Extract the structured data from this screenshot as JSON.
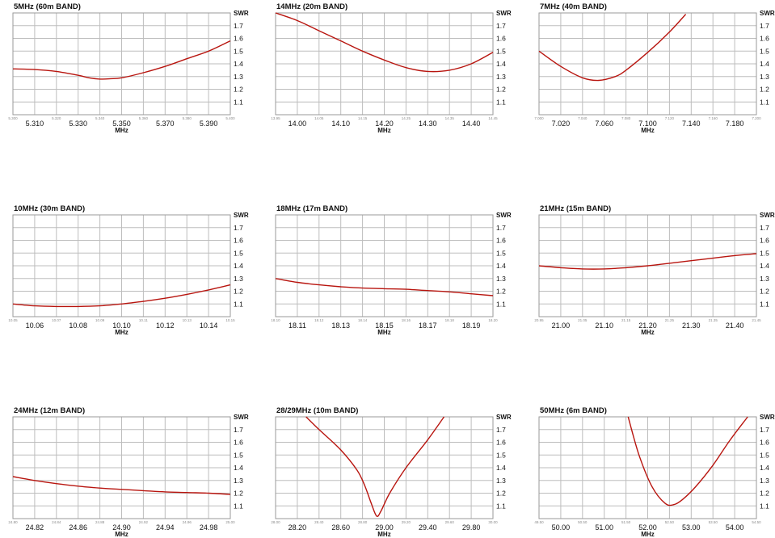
{
  "colors": {
    "curve": "#b8150f",
    "grid": "#bdbdbd"
  },
  "chart_data": [
    {
      "type": "line",
      "title": "5MHz (60m BAND)",
      "xlabel": "MHz",
      "ylabel": "SWR",
      "xlim": [
        5.3,
        5.4
      ],
      "ylim": [
        1.0,
        1.8
      ],
      "xticks_major": [
        "5.310",
        "5.330",
        "5.350",
        "5.370",
        "5.390"
      ],
      "xticks_minor": [
        "5.300",
        "5.320",
        "5.340",
        "5.360",
        "5.380",
        "5.400"
      ],
      "yticks": [
        "1.1",
        "1.2",
        "1.3",
        "1.4",
        "1.5",
        "1.6",
        "1.7"
      ],
      "grid": true,
      "series": [
        {
          "x": [
            5.3,
            5.31,
            5.32,
            5.33,
            5.335,
            5.34,
            5.345,
            5.35,
            5.36,
            5.37,
            5.38,
            5.39,
            5.4
          ],
          "y": [
            1.36,
            1.355,
            1.34,
            1.31,
            1.29,
            1.28,
            1.283,
            1.29,
            1.33,
            1.38,
            1.44,
            1.5,
            1.58
          ]
        }
      ]
    },
    {
      "type": "line",
      "title": "14MHz (20m BAND)",
      "xlabel": "MHz",
      "ylabel": "SWR",
      "xlim": [
        13.95,
        14.45
      ],
      "ylim": [
        1.0,
        1.8
      ],
      "xticks_major": [
        "14.00",
        "14.10",
        "14.20",
        "14.30",
        "14.40"
      ],
      "xticks_minor": [
        "13.95",
        "14.05",
        "14.15",
        "14.25",
        "14.35",
        "14.45"
      ],
      "yticks": [
        "1.1",
        "1.2",
        "1.3",
        "1.4",
        "1.5",
        "1.6",
        "1.7"
      ],
      "grid": true,
      "series": [
        {
          "x": [
            13.95,
            14.0,
            14.05,
            14.1,
            14.15,
            14.2,
            14.25,
            14.3,
            14.35,
            14.4,
            14.45
          ],
          "y": [
            1.8,
            1.74,
            1.66,
            1.58,
            1.5,
            1.43,
            1.37,
            1.34,
            1.35,
            1.4,
            1.49
          ]
        }
      ]
    },
    {
      "type": "line",
      "title": "7MHz (40m BAND)",
      "xlabel": "MHz",
      "ylabel": "SWR",
      "xlim": [
        7.0,
        7.2
      ],
      "ylim": [
        1.0,
        1.8
      ],
      "xticks_major": [
        "7.020",
        "7.060",
        "7.100",
        "7.140",
        "7.180"
      ],
      "xticks_minor": [
        "7.000",
        "7.040",
        "7.080",
        "7.120",
        "7.160",
        "7.200"
      ],
      "yticks": [
        "1.1",
        "1.2",
        "1.3",
        "1.4",
        "1.5",
        "1.6",
        "1.7"
      ],
      "grid": true,
      "series": [
        {
          "x": [
            7.0,
            7.02,
            7.04,
            7.055,
            7.07,
            7.08,
            7.1,
            7.12,
            7.135
          ],
          "y": [
            1.5,
            1.38,
            1.29,
            1.27,
            1.3,
            1.35,
            1.49,
            1.65,
            1.79
          ]
        }
      ]
    },
    {
      "type": "line",
      "title": "10MHz (30m BAND)",
      "xlabel": "MHz",
      "ylabel": "SWR",
      "xlim": [
        10.05,
        10.15
      ],
      "ylim": [
        1.0,
        1.8
      ],
      "xticks_major": [
        "10.06",
        "10.08",
        "10.10",
        "10.12",
        "10.14"
      ],
      "xticks_minor": [
        "10.05",
        "10.07",
        "10.09",
        "10.11",
        "10.13",
        "10.15"
      ],
      "yticks": [
        "1.1",
        "1.2",
        "1.3",
        "1.4",
        "1.5",
        "1.6",
        "1.7"
      ],
      "grid": true,
      "series": [
        {
          "x": [
            10.05,
            10.06,
            10.07,
            10.08,
            10.09,
            10.1,
            10.11,
            10.12,
            10.13,
            10.14,
            10.15
          ],
          "y": [
            1.1,
            1.085,
            1.08,
            1.08,
            1.085,
            1.1,
            1.12,
            1.145,
            1.175,
            1.21,
            1.25
          ]
        }
      ]
    },
    {
      "type": "line",
      "title": "18MHz (17m BAND)",
      "xlabel": "MHz",
      "ylabel": "SWR",
      "xlim": [
        18.1,
        18.2
      ],
      "ylim": [
        1.0,
        1.8
      ],
      "xticks_major": [
        "18.11",
        "18.13",
        "18.15",
        "18.17",
        "18.19"
      ],
      "xticks_minor": [
        "18.10",
        "18.12",
        "18.14",
        "18.16",
        "18.18",
        "18.20"
      ],
      "yticks": [
        "1.1",
        "1.2",
        "1.3",
        "1.4",
        "1.5",
        "1.6",
        "1.7"
      ],
      "grid": true,
      "series": [
        {
          "x": [
            18.1,
            18.11,
            18.12,
            18.13,
            18.14,
            18.15,
            18.16,
            18.17,
            18.18,
            18.19,
            18.2
          ],
          "y": [
            1.3,
            1.27,
            1.25,
            1.235,
            1.225,
            1.22,
            1.215,
            1.205,
            1.195,
            1.18,
            1.165
          ]
        }
      ]
    },
    {
      "type": "line",
      "title": "21MHz (15m BAND)",
      "xlabel": "MHz",
      "ylabel": "SWR",
      "xlim": [
        20.95,
        21.45
      ],
      "ylim": [
        1.0,
        1.8
      ],
      "xticks_major": [
        "21.00",
        "21.10",
        "21.20",
        "21.30",
        "21.40"
      ],
      "xticks_minor": [
        "20.95",
        "21.05",
        "21.15",
        "21.25",
        "21.35",
        "21.45"
      ],
      "yticks": [
        "1.1",
        "1.2",
        "1.3",
        "1.4",
        "1.5",
        "1.6",
        "1.7"
      ],
      "grid": true,
      "series": [
        {
          "x": [
            20.95,
            21.0,
            21.05,
            21.1,
            21.15,
            21.2,
            21.25,
            21.3,
            21.35,
            21.4,
            21.45
          ],
          "y": [
            1.4,
            1.385,
            1.375,
            1.375,
            1.385,
            1.4,
            1.42,
            1.44,
            1.46,
            1.48,
            1.495
          ]
        }
      ]
    },
    {
      "type": "line",
      "title": "24MHz (12m BAND)",
      "xlabel": "MHz",
      "ylabel": "SWR",
      "xlim": [
        24.8,
        25.0
      ],
      "ylim": [
        1.0,
        1.8
      ],
      "xticks_major": [
        "24.82",
        "24.86",
        "24.90",
        "24.94",
        "24.98"
      ],
      "xticks_minor": [
        "24.80",
        "24.84",
        "24.88",
        "24.92",
        "24.96",
        "25.00"
      ],
      "yticks": [
        "1.1",
        "1.2",
        "1.3",
        "1.4",
        "1.5",
        "1.6",
        "1.7"
      ],
      "grid": true,
      "series": [
        {
          "x": [
            24.8,
            24.82,
            24.84,
            24.86,
            24.88,
            24.9,
            24.92,
            24.94,
            24.96,
            24.98,
            25.0
          ],
          "y": [
            1.33,
            1.3,
            1.275,
            1.255,
            1.24,
            1.23,
            1.22,
            1.21,
            1.205,
            1.2,
            1.19
          ]
        }
      ]
    },
    {
      "type": "line",
      "title": "28/29MHz (10m BAND)",
      "xlabel": "MHz",
      "ylabel": "SWR",
      "xlim": [
        28.0,
        30.0
      ],
      "ylim": [
        1.0,
        1.8
      ],
      "xticks_major": [
        "28.20",
        "28.60",
        "29.00",
        "29.40",
        "29.80"
      ],
      "xticks_minor": [
        "28.00",
        "28.40",
        "28.80",
        "29.20",
        "29.60",
        "30.00"
      ],
      "yticks": [
        "1.1",
        "1.2",
        "1.3",
        "1.4",
        "1.5",
        "1.6",
        "1.7"
      ],
      "grid": true,
      "series": [
        {
          "x": [
            28.28,
            28.4,
            28.6,
            28.75,
            28.82,
            28.88,
            28.93,
            28.97,
            29.05,
            29.2,
            29.4,
            29.55
          ],
          "y": [
            1.8,
            1.7,
            1.54,
            1.38,
            1.26,
            1.12,
            1.02,
            1.06,
            1.2,
            1.4,
            1.62,
            1.8
          ]
        }
      ]
    },
    {
      "type": "line",
      "title": "50MHz (6m BAND)",
      "xlabel": "MHz",
      "ylabel": "SWR",
      "xlim": [
        49.5,
        54.5
      ],
      "ylim": [
        1.0,
        1.8
      ],
      "xticks_major": [
        "50.00",
        "51.00",
        "52.00",
        "53.00",
        "54.00"
      ],
      "xticks_minor": [
        "49.50",
        "50.50",
        "51.50",
        "52.50",
        "53.50",
        "54.50"
      ],
      "yticks": [
        "1.1",
        "1.2",
        "1.3",
        "1.4",
        "1.5",
        "1.6",
        "1.7"
      ],
      "grid": true,
      "series": [
        {
          "x": [
            51.55,
            51.8,
            52.1,
            52.4,
            52.6,
            52.8,
            53.1,
            53.5,
            53.9,
            54.3
          ],
          "y": [
            1.8,
            1.5,
            1.25,
            1.12,
            1.11,
            1.15,
            1.25,
            1.42,
            1.62,
            1.8
          ]
        }
      ]
    }
  ]
}
